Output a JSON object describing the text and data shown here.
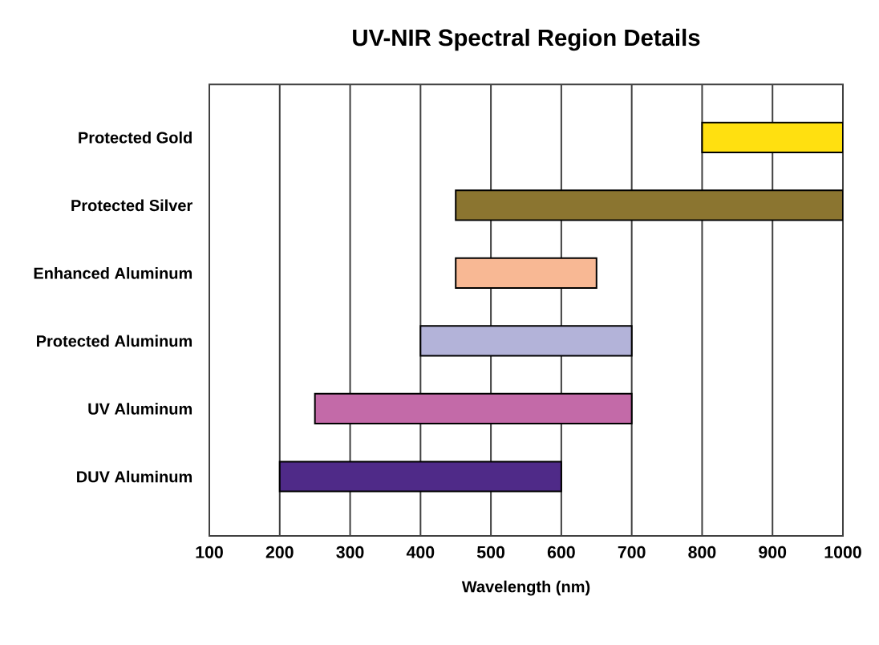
{
  "chart_data": {
    "type": "bar",
    "orientation": "horizontal",
    "title": "UV-NIR Spectral Region Details",
    "xlabel": "Wavelength (nm)",
    "categories": [
      "Protected Gold",
      "Protected Silver",
      "Enhanced Aluminum",
      "Protected Aluminum",
      "UV Aluminum",
      "DUV Aluminum"
    ],
    "base": [
      800,
      450,
      450,
      400,
      250,
      200
    ],
    "values": [
      200,
      550,
      200,
      300,
      450,
      400
    ],
    "colors": [
      "#ffe010",
      "#8b7530",
      "#f8b894",
      "#b3b3d9",
      "#c36aa8",
      "#4f2a88"
    ],
    "xlim": [
      100,
      1000
    ],
    "xticks": [
      100,
      200,
      300,
      400,
      500,
      600,
      700,
      800,
      900,
      1000
    ],
    "grid": "x"
  }
}
